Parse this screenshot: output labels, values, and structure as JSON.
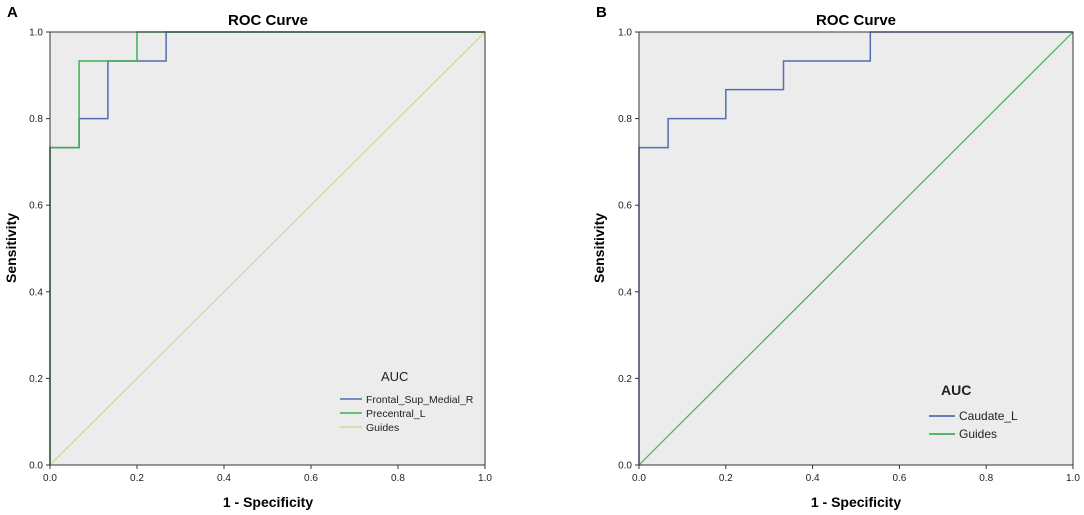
{
  "chart_data": [
    {
      "panel": "A",
      "type": "line",
      "title": "ROC Curve",
      "xlabel": "1 - Specificity",
      "ylabel": "Sensitivity",
      "xlim": [
        0,
        1
      ],
      "ylim": [
        0,
        1
      ],
      "xticks": [
        "0.0",
        "0.2",
        "0.4",
        "0.6",
        "0.8",
        "1.0"
      ],
      "yticks": [
        "0.0",
        "0.2",
        "0.4",
        "0.6",
        "0.8",
        "1.0"
      ],
      "legend_title": "AUC",
      "legend_position": "bottom-right",
      "series": [
        {
          "name": "Frontal_Sup_Medial_R",
          "color": "#4f6fb0",
          "x": [
            0,
            0,
            0.067,
            0.067,
            0.133,
            0.133,
            0.267,
            0.267,
            1
          ],
          "y": [
            0,
            0.733,
            0.733,
            0.8,
            0.8,
            0.933,
            0.933,
            1,
            1
          ]
        },
        {
          "name": "Precentral_L",
          "color": "#3fb04f",
          "x": [
            0,
            0,
            0.067,
            0.067,
            0.2,
            0.2,
            1
          ],
          "y": [
            0,
            0.733,
            0.733,
            0.933,
            0.933,
            1,
            1
          ]
        },
        {
          "name": "Guides",
          "color": "#d8d29a",
          "x": [
            0,
            1
          ],
          "y": [
            0,
            1
          ]
        }
      ]
    },
    {
      "panel": "B",
      "type": "line",
      "title": "ROC Curve",
      "xlabel": "1 - Specificity",
      "ylabel": "Sensitivity",
      "xlim": [
        0,
        1
      ],
      "ylim": [
        0,
        1
      ],
      "xticks": [
        "0.0",
        "0.2",
        "0.4",
        "0.6",
        "0.8",
        "1.0"
      ],
      "yticks": [
        "0.0",
        "0.2",
        "0.4",
        "0.6",
        "0.8",
        "1.0"
      ],
      "legend_title": "AUC",
      "legend_position": "bottom-right",
      "series": [
        {
          "name": "Caudate_L",
          "color": "#4f6fb0",
          "x": [
            0,
            0,
            0.067,
            0.067,
            0.2,
            0.2,
            0.333,
            0.333,
            0.533,
            0.533,
            1
          ],
          "y": [
            0,
            0.733,
            0.733,
            0.8,
            0.8,
            0.867,
            0.867,
            0.933,
            0.933,
            1,
            1
          ]
        },
        {
          "name": "Guides",
          "color": "#3fb04f",
          "x": [
            0,
            1
          ],
          "y": [
            0,
            1
          ]
        }
      ]
    }
  ]
}
